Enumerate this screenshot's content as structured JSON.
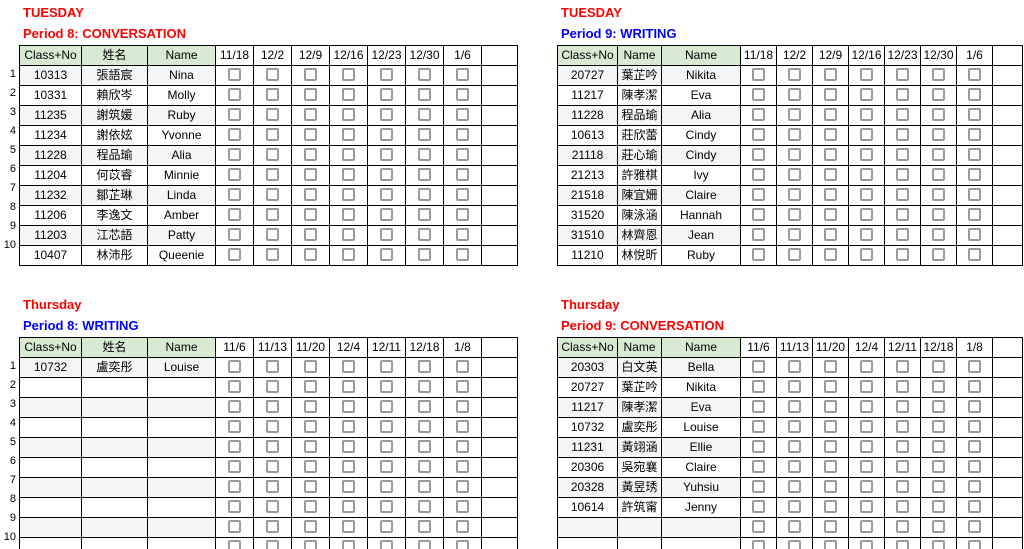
{
  "colors": {
    "red": "#ff0000",
    "blue": "#0000ff",
    "header_green": "#d9ead3",
    "band_gray": "#f4f5f5",
    "checkbox_border": "#9b9b9b",
    "grid_border": "#000000"
  },
  "tables": [
    {
      "id": "tuesday-period8",
      "day": "TUESDAY",
      "day_color": "#ff0000",
      "period": "Period 8: CONVERSATION",
      "period_color": "#ff0000",
      "row_numbers": true,
      "row_labels": [
        "1",
        "2",
        "3",
        "4",
        "5",
        "6",
        "7",
        "8",
        "9",
        "10"
      ],
      "headers": [
        "Class+No",
        "姓名",
        "Name"
      ],
      "dates": [
        "11/18",
        "12/2",
        "12/9",
        "12/16",
        "12/23",
        "12/30",
        "1/6"
      ],
      "rows": [
        {
          "class_no": "10313",
          "zh": "張語宸",
          "en": "Nina"
        },
        {
          "class_no": "10331",
          "zh": "賴欣岑",
          "en": "Molly"
        },
        {
          "class_no": "11235",
          "zh": "謝筑媛",
          "en": "Ruby"
        },
        {
          "class_no": "11234",
          "zh": "謝依妶",
          "en": "Yvonne"
        },
        {
          "class_no": "11228",
          "zh": "程品瑜",
          "en": "Alia"
        },
        {
          "class_no": "11204",
          "zh": "何苡睿",
          "en": "Minnie"
        },
        {
          "class_no": "11232",
          "zh": "鄒芷琳",
          "en": "Linda"
        },
        {
          "class_no": "11206",
          "zh": "李逸文",
          "en": "Amber"
        },
        {
          "class_no": "11203",
          "zh": "江芯語",
          "en": "Patty"
        },
        {
          "class_no": "10407",
          "zh": "林沛彤",
          "en": "Queenie"
        }
      ]
    },
    {
      "id": "tuesday-period9",
      "day": "TUESDAY",
      "day_color": "#ff0000",
      "period": "Period 9: WRITING",
      "period_color": "#0000ff",
      "row_numbers": false,
      "row_labels": [],
      "headers": [
        "Class+No",
        "Name",
        "Name"
      ],
      "dates": [
        "11/18",
        "12/2",
        "12/9",
        "12/16",
        "12/23",
        "12/30",
        "1/6"
      ],
      "rows": [
        {
          "class_no": "20727",
          "zh": "葉芷吟",
          "en": "Nikita"
        },
        {
          "class_no": "11217",
          "zh": "陳孝潔",
          "en": "Eva"
        },
        {
          "class_no": "11228",
          "zh": "程品瑜",
          "en": "Alia"
        },
        {
          "class_no": "10613",
          "zh": "莊欣蕾",
          "en": "Cindy"
        },
        {
          "class_no": "21118",
          "zh": "莊心瑜",
          "en": "Cindy"
        },
        {
          "class_no": "21213",
          "zh": "許雅棋",
          "en": "Ivy"
        },
        {
          "class_no": "21518",
          "zh": "陳宜姍",
          "en": "Claire"
        },
        {
          "class_no": "31520",
          "zh": "陳泳涵",
          "en": "Hannah"
        },
        {
          "class_no": "31510",
          "zh": "林齊恩",
          "en": "Jean"
        },
        {
          "class_no": "11210",
          "zh": "林悅昕",
          "en": "Ruby"
        }
      ]
    },
    {
      "id": "thursday-period8",
      "day": "Thursday",
      "day_color": "#ff0000",
      "period": "Period 8: WRITING",
      "period_color": "#0000ff",
      "row_numbers": true,
      "row_labels": [
        "1",
        "2",
        "3",
        "4",
        "5",
        "6",
        "7",
        "8",
        "9",
        "10"
      ],
      "headers": [
        "Class+No",
        "姓名",
        "Name"
      ],
      "dates": [
        "11/6",
        "11/13",
        "11/20",
        "12/4",
        "12/11",
        "12/18",
        "1/8"
      ],
      "rows": [
        {
          "class_no": "10732",
          "zh": "盧奕彤",
          "en": "Louise"
        },
        {
          "class_no": "",
          "zh": "",
          "en": ""
        },
        {
          "class_no": "",
          "zh": "",
          "en": ""
        },
        {
          "class_no": "",
          "zh": "",
          "en": ""
        },
        {
          "class_no": "",
          "zh": "",
          "en": ""
        },
        {
          "class_no": "",
          "zh": "",
          "en": ""
        },
        {
          "class_no": "",
          "zh": "",
          "en": ""
        },
        {
          "class_no": "",
          "zh": "",
          "en": ""
        },
        {
          "class_no": "",
          "zh": "",
          "en": ""
        },
        {
          "class_no": "",
          "zh": "",
          "en": ""
        }
      ]
    },
    {
      "id": "thursday-period9",
      "day": "Thursday",
      "day_color": "#ff0000",
      "period": "Period 9: CONVERSATION",
      "period_color": "#ff0000",
      "row_numbers": false,
      "row_labels": [],
      "headers": [
        "Class+No",
        "Name",
        "Name"
      ],
      "dates": [
        "11/6",
        "11/13",
        "11/20",
        "12/4",
        "12/11",
        "12/18",
        "1/8"
      ],
      "rows": [
        {
          "class_no": "20303",
          "zh": "白文英",
          "en": "Bella"
        },
        {
          "class_no": "20727",
          "zh": "葉芷吟",
          "en": "Nikita"
        },
        {
          "class_no": "11217",
          "zh": "陳孝潔",
          "en": "Eva"
        },
        {
          "class_no": "10732",
          "zh": "盧奕彤",
          "en": "Louise"
        },
        {
          "class_no": "11231",
          "zh": "黃翊涵",
          "en": "Ellie"
        },
        {
          "class_no": "20306",
          "zh": "吳宛襄",
          "en": "Claire"
        },
        {
          "class_no": "20328",
          "zh": "黃昱琇",
          "en": "Yuhsiu"
        },
        {
          "class_no": "10614",
          "zh": "許筑甯",
          "en": "Jenny"
        },
        {
          "class_no": "",
          "zh": "",
          "en": ""
        },
        {
          "class_no": "",
          "zh": "",
          "en": ""
        }
      ]
    }
  ]
}
